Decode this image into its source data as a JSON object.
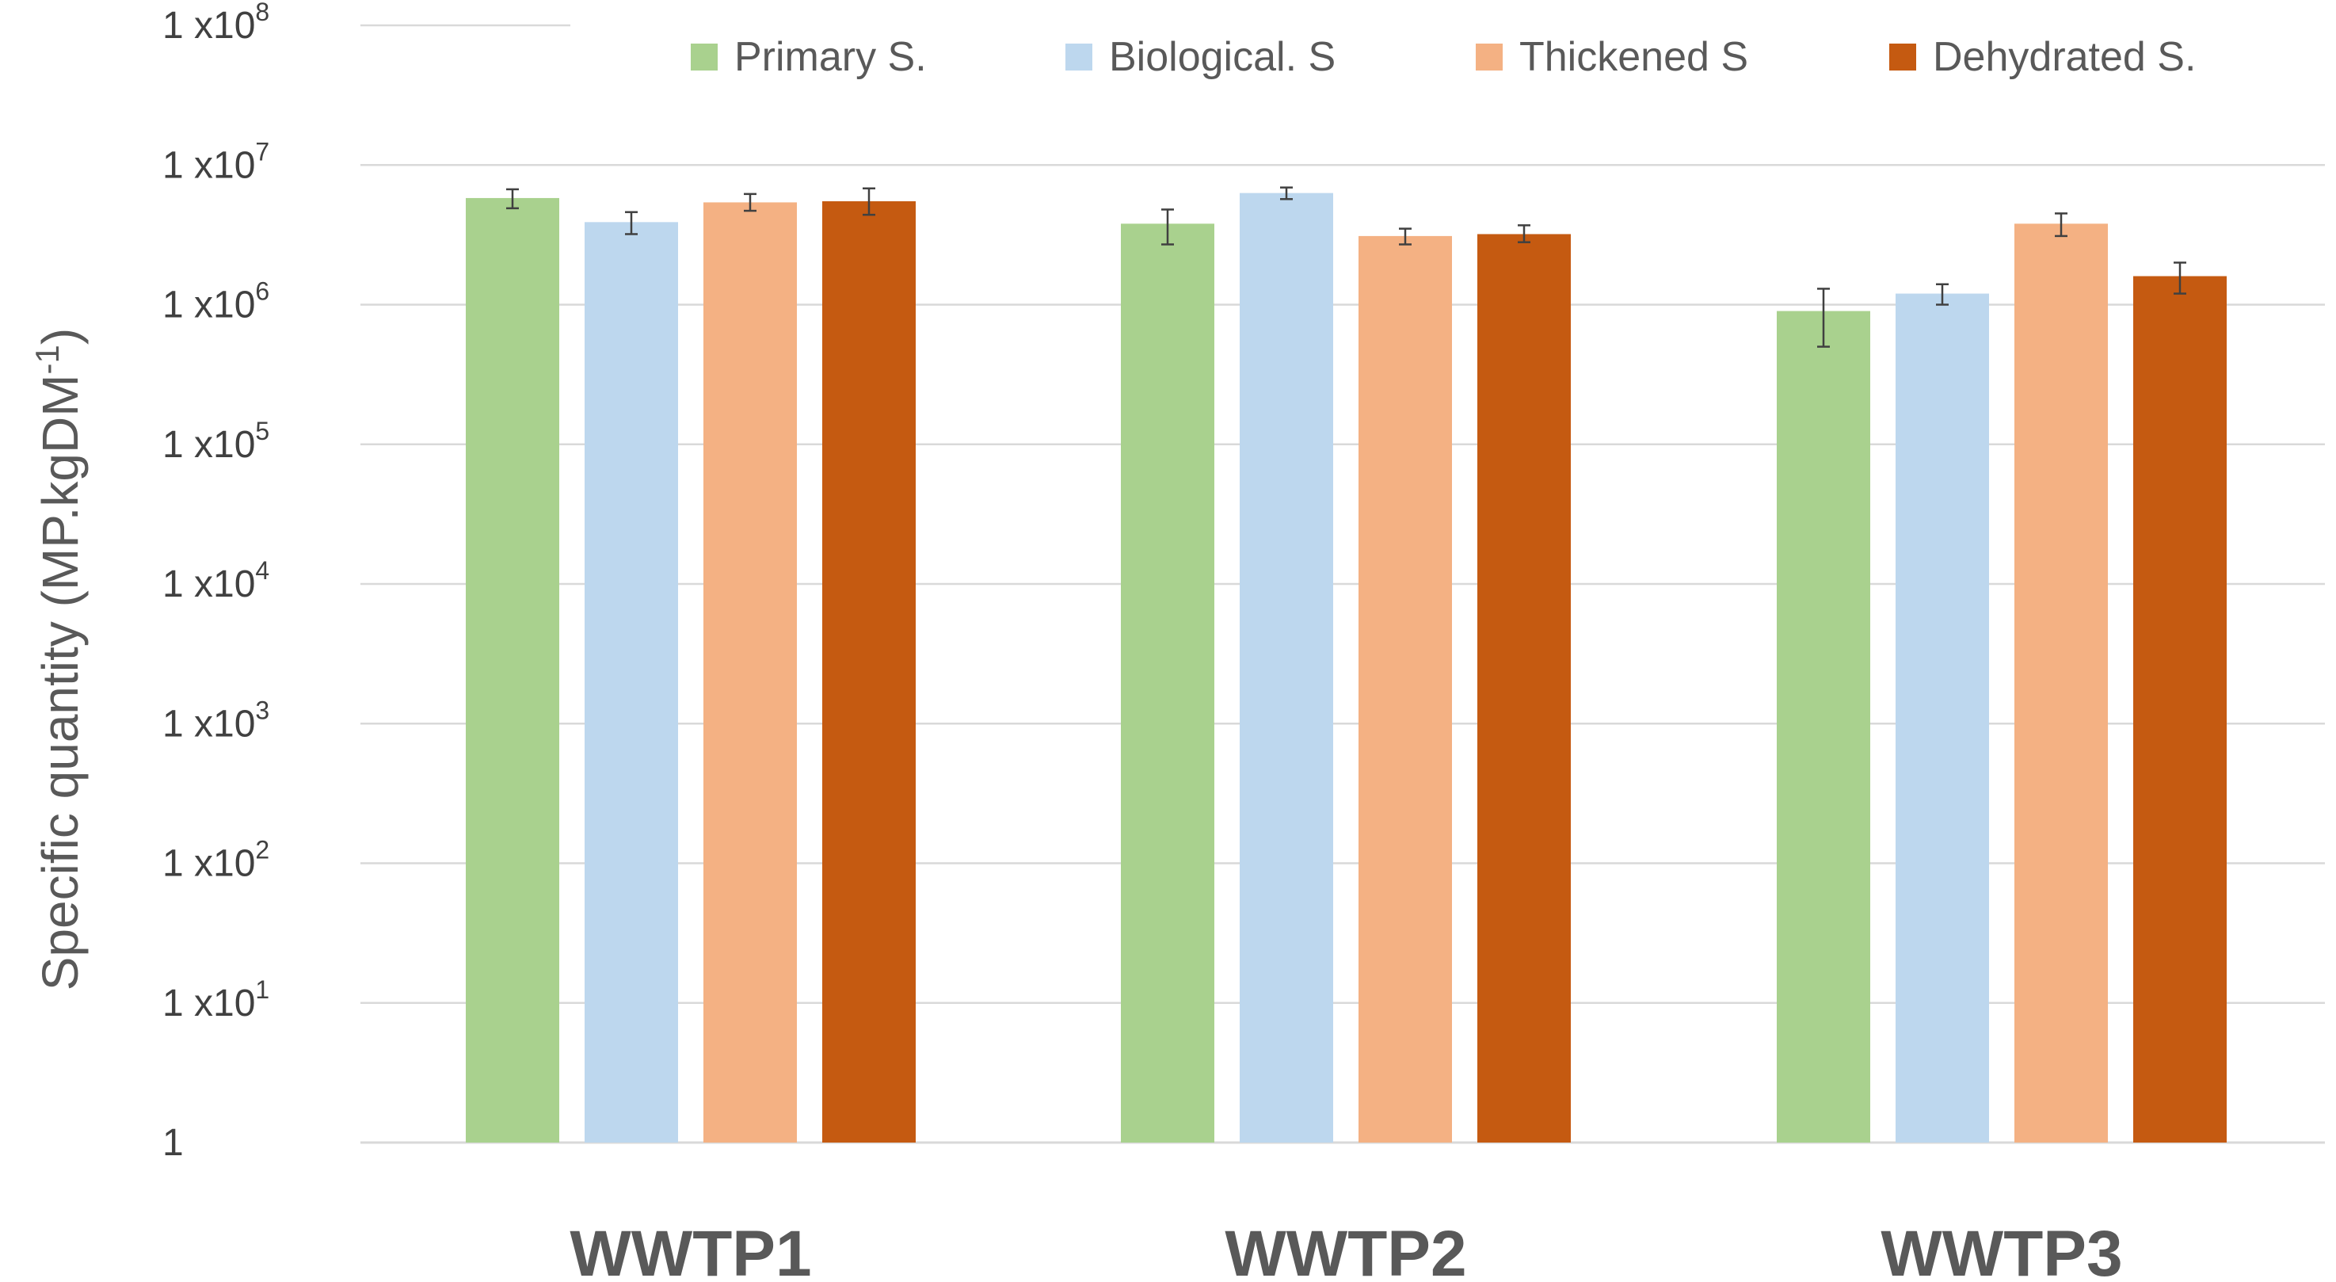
{
  "chart_data": {
    "type": "bar",
    "scale": "log10",
    "title": "",
    "xlabel": "",
    "ylabel": "Specific quantity (MP.kgDM-1)",
    "ylabel_parts": {
      "main": "Specific quantity (MP.kgDM",
      "superscript": "-1",
      "close": ")"
    },
    "ylim": [
      1,
      100000000
    ],
    "yticks": [
      {
        "value": 1,
        "base": "1",
        "exp": ""
      },
      {
        "value": 10,
        "base": "1 x10",
        "exp": "1"
      },
      {
        "value": 100,
        "base": "1 x10",
        "exp": "2"
      },
      {
        "value": 1000,
        "base": "1 x10",
        "exp": "3"
      },
      {
        "value": 10000,
        "base": "1 x10",
        "exp": "4"
      },
      {
        "value": 100000,
        "base": "1 x10",
        "exp": "5"
      },
      {
        "value": 1000000,
        "base": "1 x10",
        "exp": "6"
      },
      {
        "value": 10000000,
        "base": "1 x10",
        "exp": "7"
      },
      {
        "value": 100000000,
        "base": "1 x10",
        "exp": "8"
      }
    ],
    "grid": true,
    "legend_position": "top-right",
    "categories": [
      "WWTP1",
      "WWTP2",
      "WWTP3"
    ],
    "series": [
      {
        "name": "Primary S.",
        "color": "#A9D18E",
        "values": [
          5800000,
          3800000,
          900000
        ],
        "errors": [
          [
            4900000,
            6700000
          ],
          [
            2700000,
            4800000
          ],
          [
            500000,
            1300000
          ]
        ]
      },
      {
        "name": "Biological. S",
        "color": "#BDD7EE",
        "values": [
          3900000,
          6300000,
          1200000
        ],
        "errors": [
          [
            3200000,
            4600000
          ],
          [
            5700000,
            6900000
          ],
          [
            1000000,
            1400000
          ]
        ]
      },
      {
        "name": "Thickened S",
        "color": "#F4B183",
        "values": [
          5400000,
          3100000,
          3800000
        ],
        "errors": [
          [
            4700000,
            6200000
          ],
          [
            2700000,
            3500000
          ],
          [
            3100000,
            4500000
          ]
        ]
      },
      {
        "name": "Dehydrated S.",
        "color": "#C55A11",
        "values": [
          5500000,
          3200000,
          1600000
        ],
        "errors": [
          [
            4400000,
            6800000
          ],
          [
            2800000,
            3700000
          ],
          [
            1200000,
            2000000
          ]
        ]
      }
    ]
  }
}
